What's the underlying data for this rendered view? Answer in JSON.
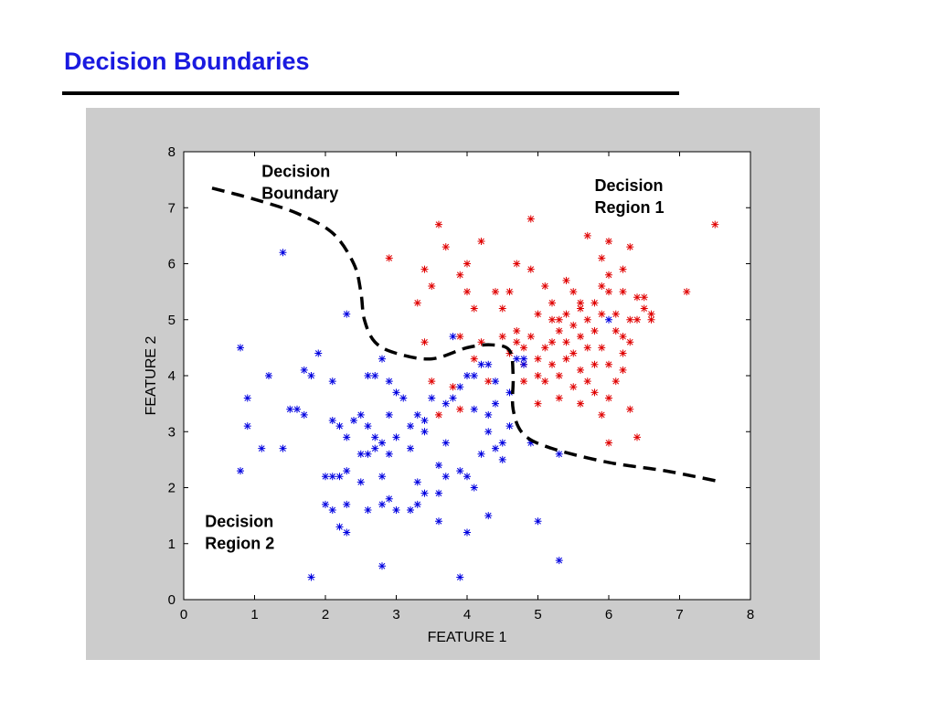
{
  "slide": {
    "title": "Decision Boundaries"
  },
  "chart_data": {
    "type": "scatter",
    "title": "",
    "xlabel": "FEATURE 1",
    "ylabel": "FEATURE 2",
    "xlim": [
      0,
      8
    ],
    "ylim": [
      0,
      8
    ],
    "xticks": [
      0,
      1,
      2,
      3,
      4,
      5,
      6,
      7,
      8
    ],
    "yticks": [
      0,
      1,
      2,
      3,
      4,
      5,
      6,
      7,
      8
    ],
    "grid": false,
    "marker": "*",
    "series": [
      {
        "color": "#e00000",
        "points": [
          [
            2.9,
            6.1
          ],
          [
            3.4,
            5.9
          ],
          [
            3.6,
            6.7
          ],
          [
            3.7,
            6.3
          ],
          [
            3.5,
            5.6
          ],
          [
            3.3,
            5.3
          ],
          [
            3.9,
            5.8
          ],
          [
            4.0,
            5.5
          ],
          [
            4.0,
            6.0
          ],
          [
            4.2,
            6.4
          ],
          [
            4.1,
            5.2
          ],
          [
            4.4,
            5.5
          ],
          [
            4.5,
            5.2
          ],
          [
            4.6,
            5.5
          ],
          [
            4.7,
            6.0
          ],
          [
            4.9,
            5.9
          ],
          [
            4.9,
            6.8
          ],
          [
            5.1,
            5.6
          ],
          [
            5.2,
            5.3
          ],
          [
            5.3,
            5.0
          ],
          [
            5.4,
            5.7
          ],
          [
            5.5,
            5.5
          ],
          [
            5.6,
            5.2
          ],
          [
            5.7,
            5.0
          ],
          [
            5.8,
            5.3
          ],
          [
            5.9,
            5.6
          ],
          [
            6.0,
            5.8
          ],
          [
            6.1,
            5.1
          ],
          [
            6.2,
            5.5
          ],
          [
            5.7,
            6.5
          ],
          [
            5.9,
            6.1
          ],
          [
            6.0,
            6.4
          ],
          [
            6.2,
            5.9
          ],
          [
            6.3,
            6.3
          ],
          [
            6.4,
            5.4
          ],
          [
            6.5,
            5.2
          ],
          [
            6.6,
            5.1
          ],
          [
            6.4,
            5.0
          ],
          [
            6.3,
            4.6
          ],
          [
            6.2,
            4.4
          ],
          [
            6.0,
            4.2
          ],
          [
            5.9,
            4.5
          ],
          [
            5.8,
            4.2
          ],
          [
            5.6,
            4.1
          ],
          [
            5.5,
            4.4
          ],
          [
            5.4,
            4.3
          ],
          [
            5.3,
            4.0
          ],
          [
            5.2,
            4.2
          ],
          [
            5.1,
            4.5
          ],
          [
            5.0,
            4.3
          ],
          [
            4.9,
            4.7
          ],
          [
            4.8,
            4.5
          ],
          [
            4.7,
            4.6
          ],
          [
            4.6,
            4.4
          ],
          [
            4.5,
            4.7
          ],
          [
            4.8,
            4.2
          ],
          [
            5.0,
            4.0
          ],
          [
            5.1,
            3.9
          ],
          [
            5.2,
            4.6
          ],
          [
            5.3,
            4.8
          ],
          [
            5.4,
            4.6
          ],
          [
            5.5,
            3.8
          ],
          [
            5.6,
            3.5
          ],
          [
            5.7,
            3.9
          ],
          [
            5.8,
            3.7
          ],
          [
            6.0,
            3.6
          ],
          [
            6.1,
            3.9
          ],
          [
            6.2,
            4.1
          ],
          [
            6.3,
            3.4
          ],
          [
            5.3,
            3.6
          ],
          [
            5.9,
            3.3
          ],
          [
            6.4,
            2.9
          ],
          [
            6.0,
            2.8
          ],
          [
            5.0,
            3.5
          ],
          [
            4.8,
            3.9
          ],
          [
            5.5,
            4.9
          ],
          [
            5.6,
            4.7
          ],
          [
            5.7,
            4.5
          ],
          [
            5.8,
            4.8
          ],
          [
            5.9,
            5.1
          ],
          [
            6.1,
            4.8
          ],
          [
            6.2,
            4.7
          ],
          [
            6.5,
            5.4
          ],
          [
            6.6,
            5.0
          ],
          [
            7.1,
            5.5
          ],
          [
            7.5,
            6.7
          ],
          [
            4.3,
            3.9
          ],
          [
            3.8,
            3.8
          ],
          [
            4.1,
            4.3
          ],
          [
            3.5,
            3.9
          ],
          [
            3.9,
            3.4
          ],
          [
            3.6,
            3.3
          ],
          [
            3.4,
            4.6
          ],
          [
            4.2,
            4.6
          ],
          [
            3.9,
            4.7
          ],
          [
            5.4,
            5.1
          ],
          [
            5.2,
            5.0
          ],
          [
            5.0,
            5.1
          ],
          [
            4.7,
            4.8
          ],
          [
            5.6,
            5.3
          ],
          [
            6.0,
            5.5
          ],
          [
            6.3,
            5.0
          ]
        ]
      },
      {
        "color": "#0000e0",
        "points": [
          [
            1.4,
            6.2
          ],
          [
            0.8,
            4.5
          ],
          [
            1.2,
            4.0
          ],
          [
            0.9,
            3.6
          ],
          [
            0.9,
            3.1
          ],
          [
            1.1,
            2.7
          ],
          [
            0.8,
            2.3
          ],
          [
            1.4,
            2.7
          ],
          [
            1.5,
            3.4
          ],
          [
            1.6,
            3.4
          ],
          [
            1.7,
            3.3
          ],
          [
            1.7,
            4.1
          ],
          [
            1.8,
            4.0
          ],
          [
            1.9,
            4.4
          ],
          [
            2.1,
            3.9
          ],
          [
            2.3,
            5.1
          ],
          [
            2.1,
            3.2
          ],
          [
            2.2,
            3.1
          ],
          [
            2.3,
            2.9
          ],
          [
            2.4,
            3.2
          ],
          [
            2.5,
            3.3
          ],
          [
            2.6,
            3.1
          ],
          [
            2.7,
            2.9
          ],
          [
            2.6,
            2.6
          ],
          [
            2.5,
            2.6
          ],
          [
            2.7,
            2.7
          ],
          [
            2.8,
            2.8
          ],
          [
            2.9,
            2.6
          ],
          [
            3.0,
            2.9
          ],
          [
            2.8,
            2.2
          ],
          [
            2.9,
            3.3
          ],
          [
            3.0,
            3.7
          ],
          [
            3.1,
            3.6
          ],
          [
            2.7,
            4.0
          ],
          [
            2.8,
            4.3
          ],
          [
            2.9,
            3.9
          ],
          [
            3.2,
            3.1
          ],
          [
            3.3,
            3.3
          ],
          [
            3.4,
            3.2
          ],
          [
            3.4,
            3.0
          ],
          [
            3.2,
            2.7
          ],
          [
            3.3,
            2.1
          ],
          [
            3.4,
            1.9
          ],
          [
            3.3,
            1.7
          ],
          [
            3.2,
            1.6
          ],
          [
            3.6,
            1.9
          ],
          [
            3.7,
            2.8
          ],
          [
            3.6,
            2.4
          ],
          [
            3.7,
            2.2
          ],
          [
            3.8,
            3.6
          ],
          [
            3.9,
            3.8
          ],
          [
            4.0,
            4.0
          ],
          [
            4.1,
            3.4
          ],
          [
            4.2,
            4.2
          ],
          [
            4.3,
            4.2
          ],
          [
            4.3,
            3.3
          ],
          [
            4.3,
            3.0
          ],
          [
            4.2,
            2.6
          ],
          [
            3.9,
            2.3
          ],
          [
            4.0,
            2.2
          ],
          [
            4.1,
            2.0
          ],
          [
            4.4,
            2.7
          ],
          [
            4.5,
            2.5
          ],
          [
            4.6,
            3.1
          ],
          [
            4.4,
            3.5
          ],
          [
            4.6,
            3.7
          ],
          [
            4.7,
            4.3
          ],
          [
            4.8,
            4.2
          ],
          [
            4.0,
            1.2
          ],
          [
            3.6,
            1.4
          ],
          [
            4.3,
            1.5
          ],
          [
            3.9,
            0.4
          ],
          [
            2.8,
            0.6
          ],
          [
            1.8,
            0.4
          ],
          [
            2.2,
            1.3
          ],
          [
            2.3,
            1.2
          ],
          [
            2.3,
            1.7
          ],
          [
            2.1,
            1.6
          ],
          [
            2.0,
            1.7
          ],
          [
            2.2,
            2.2
          ],
          [
            2.1,
            2.2
          ],
          [
            2.0,
            2.2
          ],
          [
            2.3,
            2.3
          ],
          [
            2.5,
            2.1
          ],
          [
            2.6,
            1.6
          ],
          [
            2.8,
            1.7
          ],
          [
            2.9,
            1.8
          ],
          [
            3.0,
            1.6
          ],
          [
            5.0,
            1.4
          ],
          [
            5.3,
            0.7
          ],
          [
            5.3,
            2.6
          ],
          [
            4.9,
            2.8
          ],
          [
            6.0,
            5.0
          ],
          [
            3.8,
            4.7
          ],
          [
            2.6,
            4.0
          ],
          [
            3.5,
            3.6
          ],
          [
            3.7,
            3.5
          ],
          [
            4.5,
            2.8
          ],
          [
            4.4,
            3.9
          ],
          [
            4.1,
            4.0
          ],
          [
            4.8,
            4.3
          ]
        ]
      }
    ],
    "boundary": {
      "style": "dashed",
      "points": [
        [
          0.4,
          7.35
        ],
        [
          1.0,
          7.15
        ],
        [
          1.6,
          6.9
        ],
        [
          2.1,
          6.55
        ],
        [
          2.4,
          6.0
        ],
        [
          2.5,
          5.5
        ],
        [
          2.55,
          5.0
        ],
        [
          2.7,
          4.6
        ],
        [
          3.0,
          4.4
        ],
        [
          3.5,
          4.3
        ],
        [
          4.0,
          4.5
        ],
        [
          4.35,
          4.55
        ],
        [
          4.6,
          4.45
        ],
        [
          4.65,
          4.0
        ],
        [
          4.65,
          3.4
        ],
        [
          4.8,
          2.95
        ],
        [
          5.2,
          2.7
        ],
        [
          6.0,
          2.45
        ],
        [
          6.8,
          2.3
        ],
        [
          7.6,
          2.1
        ]
      ]
    },
    "annotations": [
      {
        "lines": [
          "Decision",
          "Boundary"
        ],
        "at": [
          1.1,
          7.55
        ]
      },
      {
        "lines": [
          "Decision",
          "Region 1"
        ],
        "at": [
          5.8,
          7.3
        ]
      },
      {
        "lines": [
          "Decision",
          "Region 2"
        ],
        "at": [
          0.3,
          1.3
        ]
      }
    ]
  }
}
